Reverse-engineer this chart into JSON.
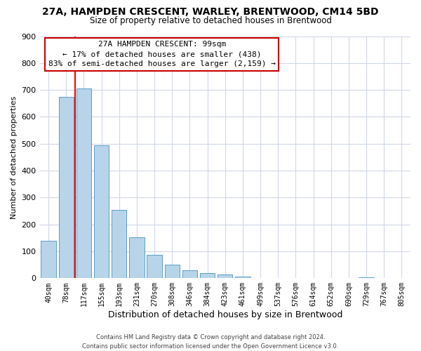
{
  "title": "27A, HAMPDEN CRESCENT, WARLEY, BRENTWOOD, CM14 5BD",
  "subtitle": "Size of property relative to detached houses in Brentwood",
  "xlabel": "Distribution of detached houses by size in Brentwood",
  "ylabel": "Number of detached properties",
  "bar_labels": [
    "40sqm",
    "78sqm",
    "117sqm",
    "155sqm",
    "193sqm",
    "231sqm",
    "270sqm",
    "308sqm",
    "346sqm",
    "384sqm",
    "423sqm",
    "461sqm",
    "499sqm",
    "537sqm",
    "576sqm",
    "614sqm",
    "652sqm",
    "690sqm",
    "729sqm",
    "767sqm",
    "805sqm"
  ],
  "bar_values": [
    138,
    675,
    705,
    493,
    253,
    152,
    86,
    50,
    29,
    18,
    13,
    6,
    0,
    0,
    0,
    0,
    0,
    0,
    4,
    0,
    0
  ],
  "bar_color": "#b8d4e8",
  "bar_edge_color": "#5a9ec9",
  "vline_color": "red",
  "vline_x_index": 1.5,
  "ylim": [
    0,
    900
  ],
  "yticks": [
    0,
    100,
    200,
    300,
    400,
    500,
    600,
    700,
    800,
    900
  ],
  "annotation_title": "27A HAMPDEN CRESCENT: 99sqm",
  "annotation_line1": "← 17% of detached houses are smaller (438)",
  "annotation_line2": "83% of semi-detached houses are larger (2,159) →",
  "annotation_box_color": "#ffffff",
  "annotation_box_edge": "#cc0000",
  "footer_line1": "Contains HM Land Registry data © Crown copyright and database right 2024.",
  "footer_line2": "Contains public sector information licensed under the Open Government Licence v3.0.",
  "bg_color": "#ffffff",
  "grid_color": "#d0d8e8"
}
